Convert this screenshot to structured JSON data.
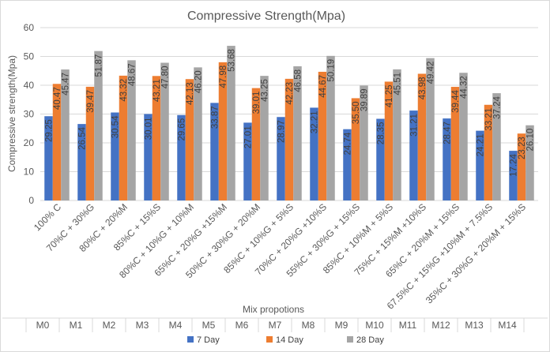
{
  "chart_data": {
    "type": "bar",
    "title": "Compressive Strength(Mpa)",
    "ylabel": "Compressive strength(Mpa)",
    "xlabel": "Mix propotions",
    "ylim": [
      0,
      60
    ],
    "yticks": [
      0,
      10,
      20,
      30,
      40,
      50,
      60
    ],
    "grid": true,
    "legend_position": "bottom",
    "categories": [
      "100% C",
      "70%C + 30%G",
      "80%C + 20%M",
      "85%C + 15%S",
      "80%C + 10%G + 10%M",
      "65%C + 20%G +15%M",
      "50%C + 30%G + 20%M",
      "85%C + 10%G + 5%S",
      "70%C + 20%G +10%S",
      "55%C + 30%G + 15%S",
      "85%C + 10%M + 5%S",
      "75%C + 15%M +10%S",
      "65%C + 20%M + 15%S",
      "67.5%C + 15%G +10%M + 7.5%S",
      "35%C + 30%G + 20%M + 15%S"
    ],
    "mix_ids": [
      "M0",
      "M1",
      "M2",
      "M3",
      "M4",
      "M5",
      "M6",
      "M7",
      "M8",
      "M9",
      "M10",
      "M11",
      "M12",
      "M13",
      "M14"
    ],
    "series": [
      {
        "name": "7 Day",
        "color": "#4472c4",
        "values": [
          29.25,
          26.54,
          30.54,
          30.01,
          29.65,
          33.87,
          27.01,
          28.97,
          32.21,
          24.74,
          28.35,
          31.21,
          28.47,
          24.21,
          17.24
        ],
        "labels": [
          "29.25",
          "26.54",
          "30.54",
          "30.01",
          "29.65",
          "33.87",
          "27.01",
          "28.97",
          "32.21",
          "24.74",
          "28.35",
          "31.21",
          "28.47",
          "24.21",
          "17.24"
        ]
      },
      {
        "name": "14 Day",
        "color": "#ed7d31",
        "values": [
          40.47,
          39.47,
          43.32,
          43.21,
          42.13,
          47.98,
          39.01,
          42.23,
          44.67,
          35.5,
          41.25,
          43.98,
          39.44,
          33.21,
          23.23
        ],
        "labels": [
          "40.47",
          "39.47",
          "43.32",
          "43.21",
          "42.13",
          "47.98",
          "39.01",
          "42.23",
          "44.67",
          "35.50",
          "41.25",
          "43.98",
          "39.44",
          "33.21",
          "23.23"
        ]
      },
      {
        "name": "28 Day",
        "color": "#a5a5a5",
        "values": [
          45.47,
          51.87,
          48.67,
          47.8,
          46.2,
          53.68,
          43.25,
          46.58,
          50.19,
          39.89,
          45.51,
          49.42,
          44.32,
          37.24,
          26.1
        ],
        "labels": [
          "45.47",
          "51.87",
          "48.67",
          "47.80",
          "46.20",
          "53.68",
          "43.25",
          "46.58",
          "50.19",
          "39.89",
          "45.51",
          "49.42",
          "44.32",
          "37.24",
          "26.10"
        ]
      }
    ]
  }
}
